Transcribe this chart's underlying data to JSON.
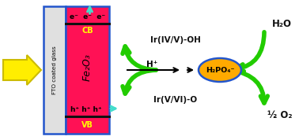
{
  "bg_color": "#ffffff",
  "arrow_yellow_fill": "#ffee00",
  "arrow_yellow_edge": "#ccbb00",
  "arrow_green_color": "#22cc00",
  "arrow_cyan_color": "#44ddcc",
  "fe2o3_color": "#ff1155",
  "fto_color": "#e0e0e0",
  "border_color": "#2255cc",
  "cb_line_color": "#111111",
  "vb_line_color": "#111111",
  "cb_label": "CB",
  "vb_label": "VB",
  "fe2o3_label": "Fe₂O₃",
  "fto_label": "FTO coated glass",
  "electrons_label": "e⁻  e⁻  e⁻",
  "holes_label": "h⁺ h⁺ h⁺",
  "ir_top_label": "Ir(IV/V)-OH",
  "ir_bot_label": "Ir(V/VI)-O",
  "h2o_label": "H₂O",
  "o2_label": "½ O₂",
  "h_plus_label": "H⁺",
  "h2po4_label": "H₂PO₄⁻",
  "h2po4_fill": "#ffaa00",
  "h2po4_edge": "#2255cc",
  "cb_color": "#ffff00",
  "vb_color": "#ffff00",
  "text_color": "#111111"
}
